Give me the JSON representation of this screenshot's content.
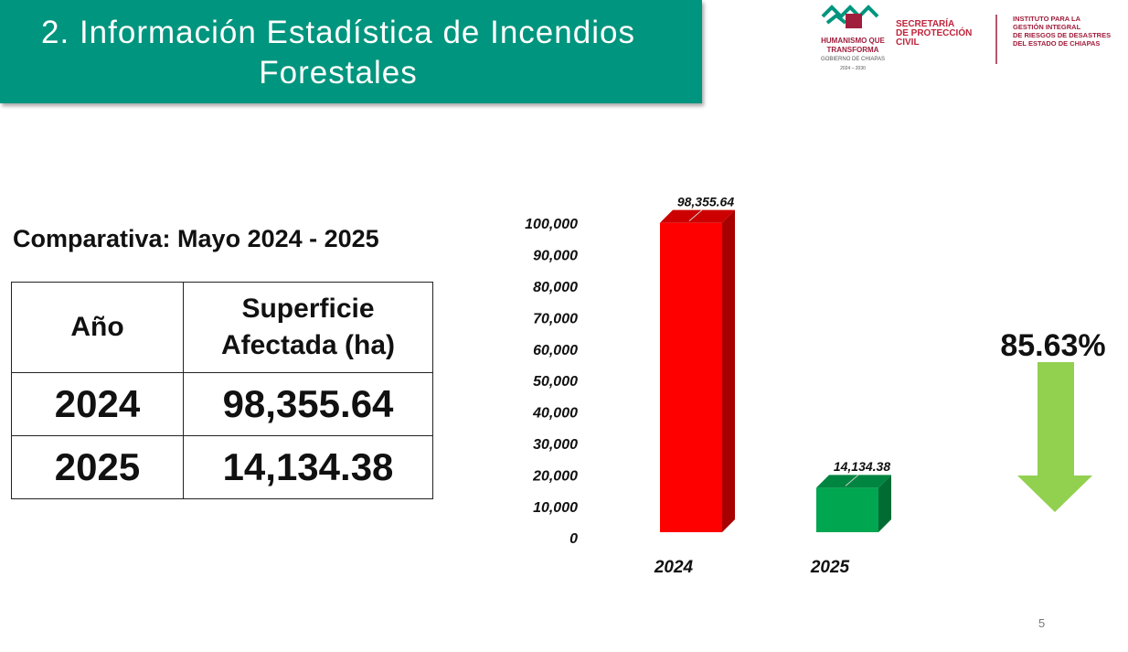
{
  "header": {
    "title": "2. Información Estadística de Incendios Forestales",
    "logo_left": [
      "HUMANISMO QUE",
      "TRANSFORMA",
      "GOBIERNO DE CHIAPAS",
      "2024 – 2030"
    ],
    "logo_middle": [
      "SECRETARÍA",
      "DE PROTECCIÓN",
      "CIVIL"
    ],
    "logo_right": [
      "INSTITUTO PARA LA",
      "GESTIÓN INTEGRAL",
      "DE RIESGOS DE DESASTRES",
      "DEL ESTADO DE CHIAPAS"
    ]
  },
  "subtitle": "Comparativa: Mayo 2024 - 2025",
  "table": {
    "header": [
      "Año",
      "Superficie Afectada (ha)"
    ],
    "rows": [
      [
        "2024",
        "98,355.64"
      ],
      [
        "2025",
        "14,134.38"
      ]
    ]
  },
  "chart_data": {
    "type": "bar3d",
    "categories": [
      "2024",
      "2025"
    ],
    "values": [
      98355.64,
      14134.38
    ],
    "value_labels": [
      "98,355.64",
      "14,134.38"
    ],
    "colors": [
      "#ff0000",
      "#00a650"
    ],
    "ylim": [
      0,
      100000
    ],
    "yticks": [
      0,
      {
        "value": 10000,
        "label": "10,000"
      },
      {
        "value": 20000,
        "label": "20,000"
      },
      {
        "value": 30000,
        "label": "30,000"
      },
      {
        "value": 40000,
        "label": "40,000"
      },
      {
        "value": 50000,
        "label": "50,000"
      },
      {
        "value": 60000,
        "label": "60,000"
      },
      {
        "value": 70000,
        "label": "70,000"
      },
      {
        "value": 80000,
        "label": "80,000"
      },
      {
        "value": 90000,
        "label": "90,000"
      },
      {
        "value": 100000,
        "label": "100,000"
      }
    ],
    "annotation": "85.63%"
  },
  "page_number": "5"
}
